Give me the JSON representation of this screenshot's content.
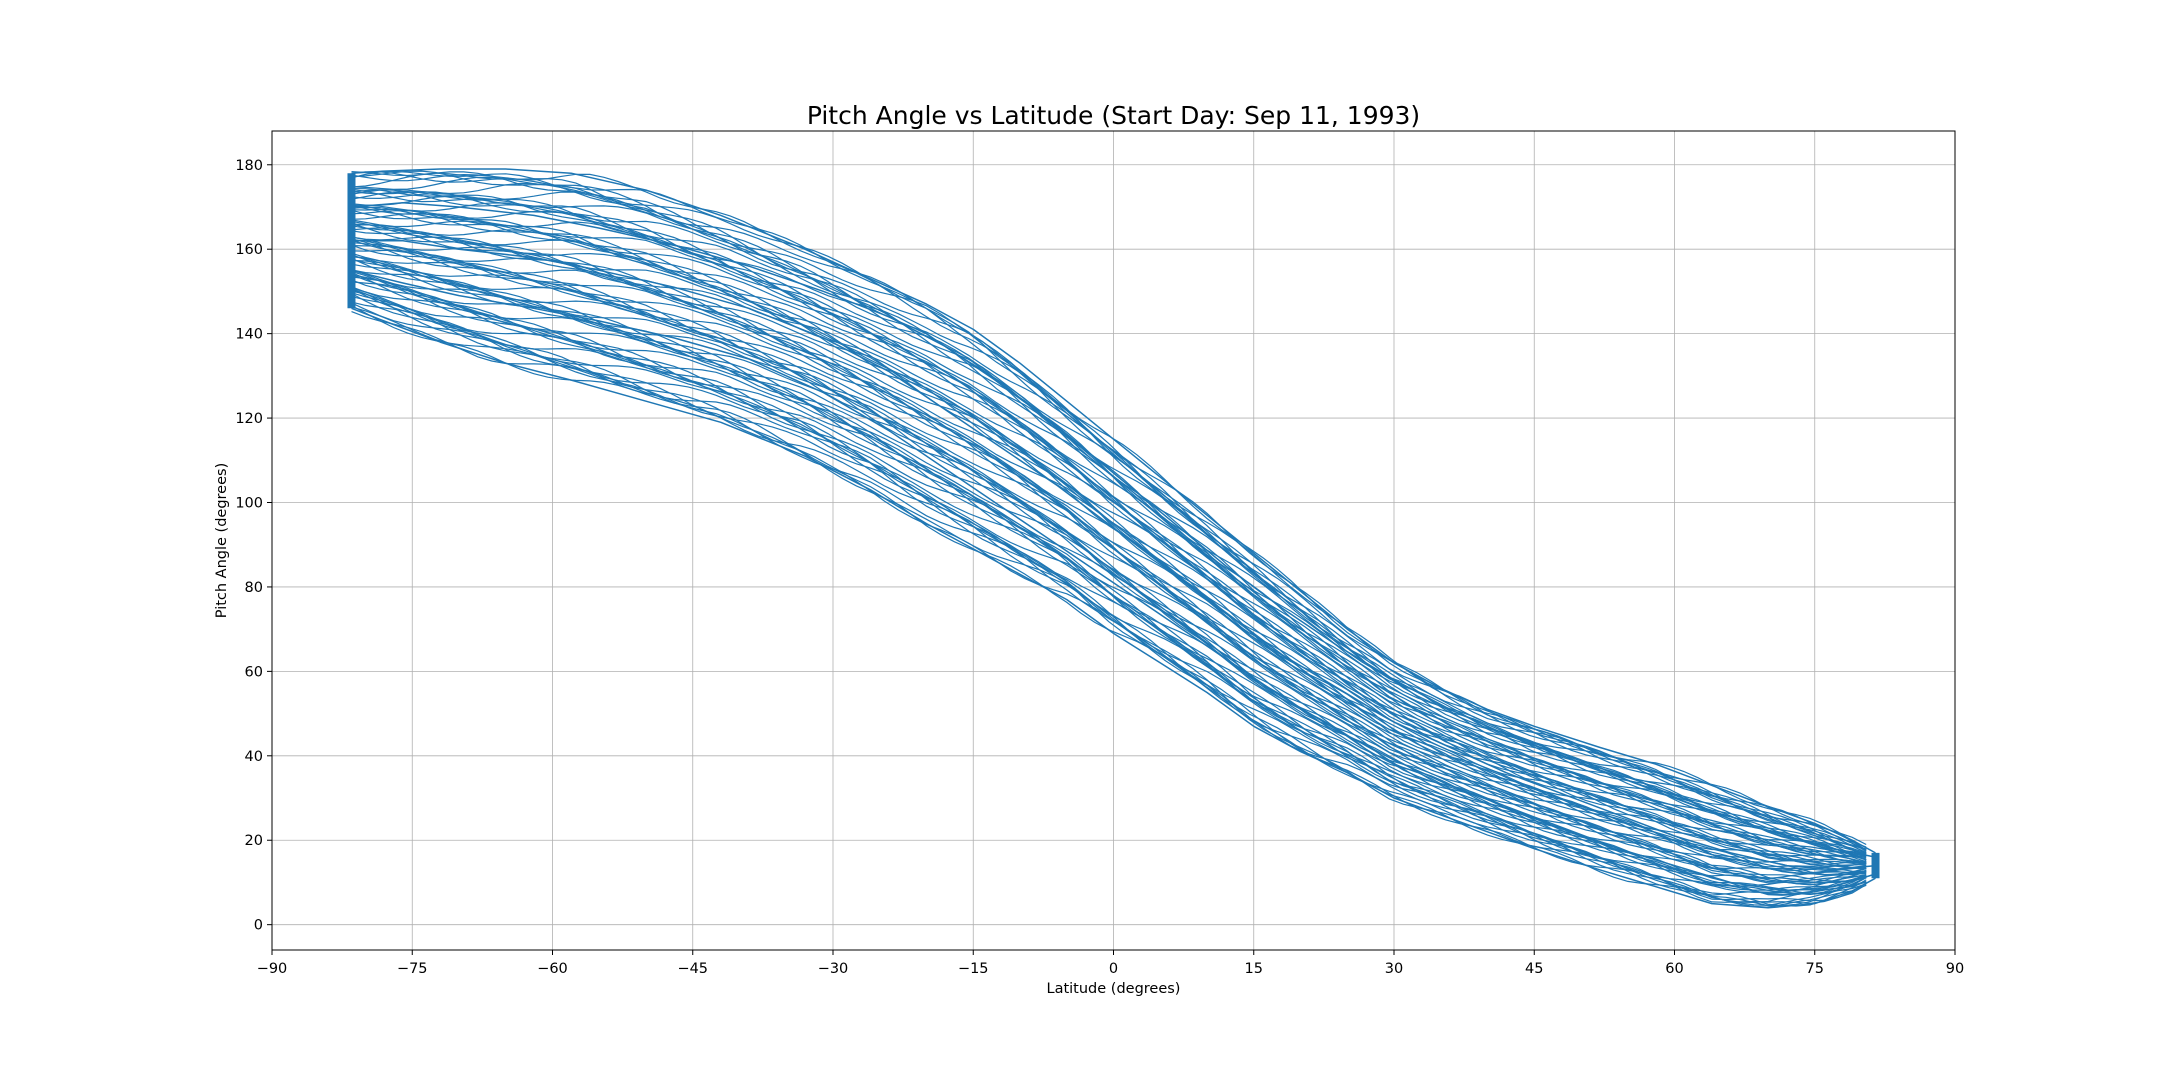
{
  "chart_data": {
    "type": "line",
    "title": "Pitch Angle vs Latitude (Start Day: Sep 11, 1993)",
    "xlabel": "Latitude (degrees)",
    "ylabel": "Pitch Angle (degrees)",
    "xlim": [
      -90,
      90
    ],
    "ylim": [
      -6,
      188
    ],
    "xticks": [
      -90,
      -75,
      -60,
      -45,
      -30,
      -15,
      0,
      15,
      30,
      45,
      60,
      75,
      90
    ],
    "yticks": [
      0,
      20,
      40,
      60,
      80,
      100,
      120,
      140,
      160,
      180
    ],
    "xtick_labels": [
      "−90",
      "−75",
      "−60",
      "−45",
      "−30",
      "−15",
      "0",
      "15",
      "30",
      "45",
      "60",
      "75",
      "90"
    ],
    "ytick_labels": [
      "0",
      "20",
      "40",
      "60",
      "80",
      "100",
      "120",
      "140",
      "160",
      "180"
    ],
    "grid": true,
    "series_color": "#1f77b4",
    "series": [
      {
        "x": [
          -81.5,
          -78,
          -72,
          -65,
          -58,
          -50,
          -42,
          -33,
          -26,
          -20,
          -15,
          -10,
          -5,
          0,
          5,
          10,
          15,
          20,
          25,
          30,
          35,
          40,
          45,
          52,
          58,
          64,
          70,
          75,
          79,
          81.5
        ],
        "y": [
          178,
          178.5,
          179,
          179,
          178,
          174,
          168,
          160,
          153,
          147,
          141,
          133,
          124,
          115,
          106,
          97,
          88,
          79,
          70,
          62,
          56,
          51,
          47,
          42,
          38,
          33,
          28,
          24,
          20,
          17
        ]
      },
      {
        "x": [
          -81.5,
          -78,
          -72,
          -65,
          -58,
          -50,
          -42,
          -33,
          -26,
          -20,
          -15,
          -10,
          -5,
          0,
          5,
          10,
          15,
          20,
          25,
          30,
          35,
          40,
          45,
          52,
          58,
          64,
          70,
          75,
          79,
          81.5
        ],
        "y": [
          146,
          143,
          138,
          133,
          129,
          124,
          119,
          111,
          103,
          95,
          89,
          83,
          77,
          69,
          62,
          55,
          47,
          41,
          36,
          30,
          26,
          22,
          18,
          13,
          9,
          5,
          4,
          5,
          8,
          11
        ]
      },
      {
        "x": [
          -81.5,
          -76,
          -70,
          -62,
          -55,
          -47,
          -39,
          -31,
          -24,
          -18,
          -12,
          -6,
          0,
          6,
          12,
          18,
          24,
          30,
          36,
          42,
          48,
          54,
          60,
          66,
          72,
          77,
          81.5
        ],
        "y": [
          170,
          171,
          170,
          168,
          165,
          161,
          156,
          150,
          144,
          137,
          128,
          118,
          107,
          96,
          85,
          75,
          66,
          58,
          51,
          45,
          40,
          35,
          30,
          25,
          21,
          18,
          16
        ]
      },
      {
        "x": [
          -81.5,
          -76,
          -70,
          -62,
          -55,
          -47,
          -39,
          -31,
          -24,
          -18,
          -12,
          -6,
          0,
          6,
          12,
          18,
          24,
          30,
          36,
          42,
          48,
          54,
          60,
          66,
          72,
          77,
          81.5
        ],
        "y": [
          155,
          152,
          149,
          146,
          143,
          139,
          134,
          126,
          117,
          108,
          99,
          90,
          81,
          72,
          63,
          54,
          46,
          39,
          33,
          28,
          23,
          18,
          14,
          10,
          8,
          9,
          12
        ]
      },
      {
        "x": [
          -81.5,
          -76,
          -70,
          -62,
          -55,
          -47,
          -39,
          -31,
          -24,
          -18,
          -12,
          -6,
          0,
          6,
          12,
          18,
          24,
          30,
          36,
          42,
          48,
          54,
          60,
          66,
          72,
          77,
          81.5
        ],
        "y": [
          162,
          162,
          160,
          158,
          155,
          151,
          146,
          139,
          131,
          122,
          113,
          104,
          94,
          84,
          74,
          64,
          56,
          48,
          42,
          36,
          31,
          26,
          21,
          17,
          14,
          13,
          14
        ]
      }
    ]
  }
}
